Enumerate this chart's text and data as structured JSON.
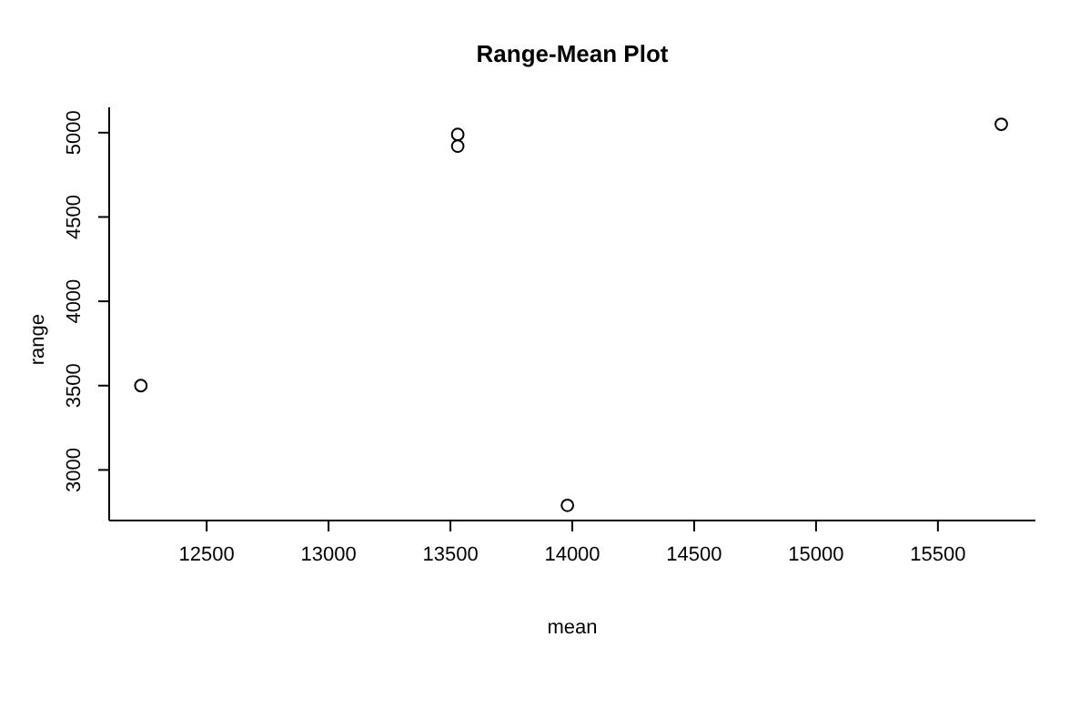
{
  "chart_data": {
    "type": "scatter",
    "title": "Range-Mean Plot",
    "xlabel": "mean",
    "ylabel": "range",
    "x": [
      12230,
      13530,
      13530,
      13980,
      15760
    ],
    "values": [
      3500,
      4990,
      4920,
      2790,
      5050
    ],
    "color": "#000000",
    "marker": "circle",
    "grid": false,
    "xlim": [
      12100,
      15900
    ],
    "xticks": [
      12500,
      13000,
      13500,
      14000,
      14500,
      15000,
      15500
    ],
    "ylim": [
      2700,
      5150
    ],
    "yticks": [
      3000,
      3500,
      4000,
      4500,
      5000
    ]
  }
}
